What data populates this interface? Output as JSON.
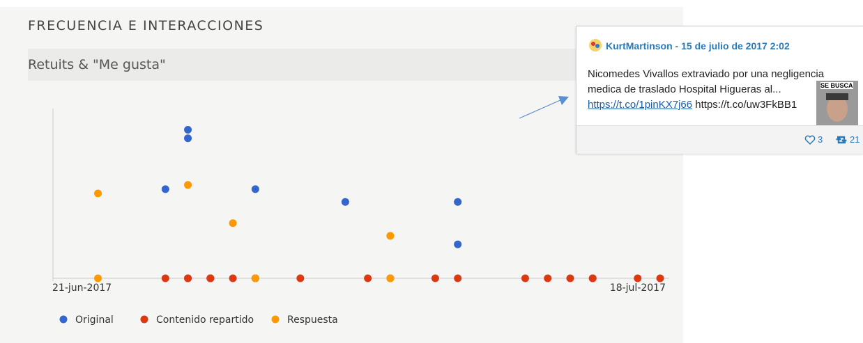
{
  "header": {
    "title": "FRECUENCIA E INTERACCIONES",
    "panel_title": "Retuits & \"Me gusta\""
  },
  "chart_data": {
    "type": "scatter",
    "xlim": [
      "2017-06-21",
      "2017-07-18"
    ],
    "xticks": [
      {
        "value": "2017-06-21",
        "label": "21-jun-2017"
      },
      {
        "value": "2017-07-18",
        "label": "18-jul-2017"
      }
    ],
    "ylim": [
      0,
      40
    ],
    "legend": "bottom-left",
    "series": [
      {
        "name": "Original",
        "color": "#3366cc",
        "x": [
          "2017-06-26",
          "2017-06-27",
          "2017-06-27",
          "2017-06-30",
          "2017-07-04",
          "2017-07-09",
          "2017-07-09"
        ],
        "values": [
          21,
          33,
          35,
          21,
          18,
          18,
          8
        ]
      },
      {
        "name": "Contenido repartido",
        "color": "#dc3912",
        "x": [
          "2017-06-26",
          "2017-06-27",
          "2017-06-27",
          "2017-06-28",
          "2017-06-28",
          "2017-06-28",
          "2017-06-28",
          "2017-06-29",
          "2017-06-30",
          "2017-06-30",
          "2017-06-30",
          "2017-07-02",
          "2017-07-05",
          "2017-07-06",
          "2017-07-08",
          "2017-07-09",
          "2017-07-12",
          "2017-07-13",
          "2017-07-14",
          "2017-07-15",
          "2017-07-15",
          "2017-07-17",
          "2017-07-18"
        ],
        "values": [
          0,
          0,
          0,
          0,
          0,
          0,
          0,
          0,
          0,
          0,
          0,
          0,
          0,
          0,
          0,
          0,
          0,
          0,
          0,
          0,
          0,
          0,
          0
        ]
      },
      {
        "name": "Respuesta",
        "color": "#ff9900",
        "x": [
          "2017-06-23",
          "2017-06-23",
          "2017-06-27",
          "2017-06-29",
          "2017-06-30",
          "2017-06-30",
          "2017-07-06",
          "2017-07-06",
          "2017-07-06"
        ],
        "values": [
          20,
          0,
          22,
          13,
          0,
          0,
          10,
          10,
          0
        ]
      }
    ]
  },
  "tooltip": {
    "byline": "KurtMartinson - 15 de julio de 2017 2:02",
    "text": "Nicomedes Vivallos extraviado por una negligencia medica de traslado Hospital Higueras al...",
    "link": "https://t.co/1pinKX7j66",
    "link2": "https://t.co/uw3FkBB1",
    "image_caption": "SE BUSCA",
    "likes": 3,
    "retweets": 21
  }
}
